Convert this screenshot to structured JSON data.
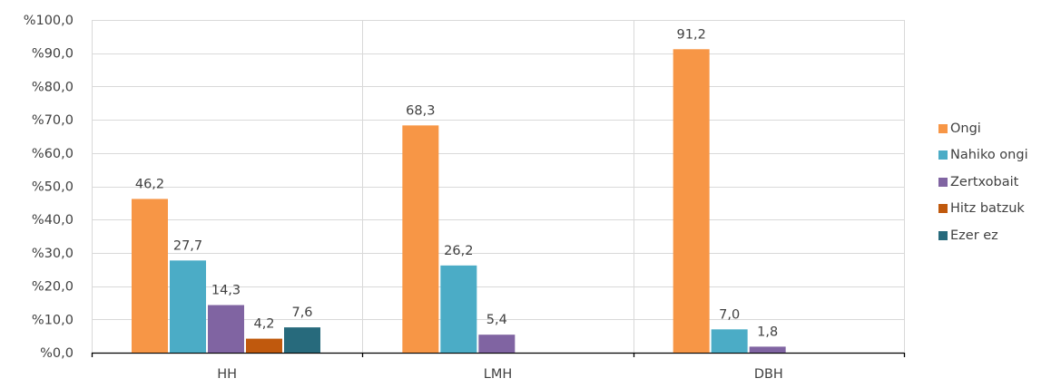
{
  "chart_data": {
    "type": "bar",
    "title": "",
    "xlabel": "",
    "ylabel": "",
    "categories": [
      "HH",
      "LMH",
      "DBH"
    ],
    "ylim": [
      0,
      100
    ],
    "yticks": [
      0,
      10,
      20,
      30,
      40,
      50,
      60,
      70,
      80,
      90,
      100
    ],
    "ytick_labels": [
      "%0,0",
      "%10,0",
      "%20,0",
      "%30,0",
      "%40,0",
      "%50,0",
      "%60,0",
      "%70,0",
      "%80,0",
      "%90,0",
      "%100,0"
    ],
    "grid": true,
    "legend_position": "right",
    "series": [
      {
        "name": "Ongi",
        "color": "#F79646",
        "values": [
          46.2,
          68.3,
          91.2
        ],
        "labels": [
          "46,2",
          "68,3",
          "91,2"
        ]
      },
      {
        "name": "Nahiko ongi",
        "color": "#4BACC6",
        "values": [
          27.7,
          26.2,
          7.0
        ],
        "labels": [
          "27,7",
          "26,2",
          "7,0"
        ]
      },
      {
        "name": "Zertxobait",
        "color": "#8064A2",
        "values": [
          14.3,
          5.4,
          1.8
        ],
        "labels": [
          "14,3",
          "5,4",
          "1,8"
        ]
      },
      {
        "name": "Hitz batzuk",
        "color": "#C0590D",
        "values": [
          4.2,
          null,
          null
        ],
        "labels": [
          "4,2",
          "",
          ""
        ]
      },
      {
        "name": "Ezer ez",
        "color": "#276A7C",
        "values": [
          7.6,
          null,
          null
        ],
        "labels": [
          "7,6",
          "",
          ""
        ]
      }
    ]
  }
}
